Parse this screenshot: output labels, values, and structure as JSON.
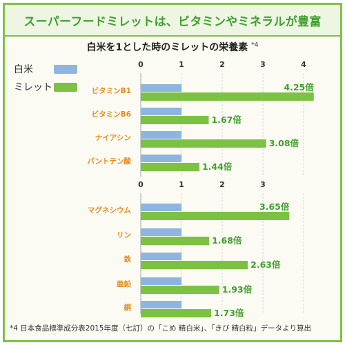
{
  "header": {
    "title": "スーパーフードミレットは、ビタミンやミネラルが豊富"
  },
  "subtitle": {
    "text": "白米を1とした時のミレットの栄養素",
    "note_ref": "*4"
  },
  "legend": {
    "rice_label": "白米",
    "millet_label": "ミレット"
  },
  "colors": {
    "rice": "#8eb5df",
    "millet": "#7cc242",
    "category_label": "#e88a1e",
    "value_label": "#3fa02c",
    "frame": "#7fc241"
  },
  "chart_data": [
    {
      "type": "bar",
      "orientation": "horizontal",
      "categories": [
        "ビタミンB1",
        "ビタミンB6",
        "ナイアシン",
        "パントテン酸"
      ],
      "series": [
        {
          "name": "白米",
          "values": [
            1,
            1,
            1,
            1
          ]
        },
        {
          "name": "ミレット",
          "values": [
            4.25,
            1.67,
            3.08,
            1.44
          ]
        }
      ],
      "value_labels": [
        "4.25倍",
        "1.67倍",
        "3.08倍",
        "1.44倍"
      ],
      "xticks": [
        "0",
        "1",
        "2",
        "3",
        "4"
      ],
      "xlim": [
        0,
        4.3
      ],
      "grid": true
    },
    {
      "type": "bar",
      "orientation": "horizontal",
      "categories": [
        "マグネシウム",
        "リン",
        "鉄",
        "亜鉛",
        "銅"
      ],
      "series": [
        {
          "name": "白米",
          "values": [
            1,
            1,
            1,
            1,
            1
          ]
        },
        {
          "name": "ミレット",
          "values": [
            3.65,
            1.68,
            2.63,
            1.93,
            1.73
          ]
        }
      ],
      "value_labels": [
        "3.65倍",
        "1.68倍",
        "2.63倍",
        "1.93倍",
        "1.73倍"
      ],
      "xticks": [
        "0",
        "1",
        "2",
        "3"
      ],
      "xlim": [
        0,
        4.3
      ],
      "grid": true
    }
  ],
  "footnote": {
    "text": "*4 日本食品標準成分表2015年度（七訂）の「こめ 精白米」、「きび 精白粒」データより算出"
  }
}
